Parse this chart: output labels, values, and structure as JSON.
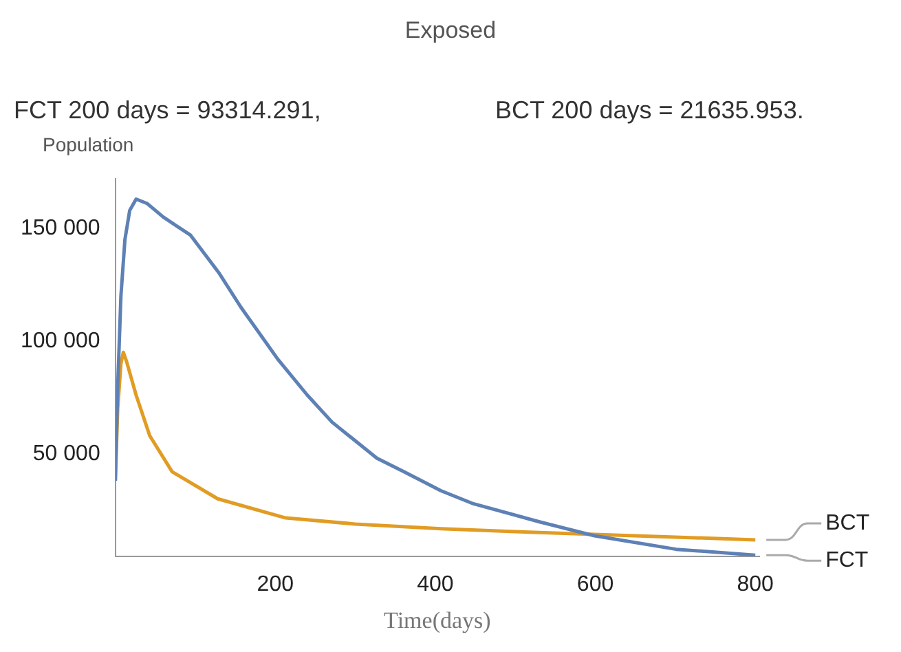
{
  "chart_data": {
    "type": "line",
    "title": "Exposed",
    "ylabel": "Population",
    "xlabel": "Time(days)",
    "annotations": [
      "FCT 200 days = 93314.291,",
      "BCT 200 days = 21635.953."
    ],
    "xlim": [
      0,
      805
    ],
    "xticks": [
      200,
      400,
      600,
      800
    ],
    "ylim": [
      4500,
      172000
    ],
    "yticks": [
      {
        "value": 50000,
        "label": "50 000"
      },
      {
        "value": 100000,
        "label": "100 000"
      },
      {
        "value": 150000,
        "label": "150 000"
      }
    ],
    "grid": false,
    "legend": false,
    "marker": "none",
    "line_style": "solid",
    "series": [
      {
        "name": "FCT",
        "color": "#5e81b5",
        "x": [
          0,
          3,
          7,
          12,
          18,
          26,
          40,
          60,
          94,
          130,
          157,
          203,
          240,
          271,
          327,
          361,
          407,
          446,
          531,
          599,
          701,
          800
        ],
        "values": [
          38000,
          80000,
          120000,
          145000,
          158000,
          163000,
          161000,
          155000,
          147000,
          130000,
          115000,
          92000,
          76000,
          64000,
          48000,
          42000,
          33600,
          28000,
          19700,
          13600,
          7600,
          5000
        ]
      },
      {
        "name": "BCT",
        "color": "#e19c24",
        "x": [
          0,
          3,
          7,
          10,
          14,
          26,
          43,
          71,
          128,
          213,
          300,
          407,
          500,
          599,
          700,
          800
        ],
        "values": [
          38000,
          70000,
          90000,
          95000,
          91000,
          76000,
          58000,
          42000,
          30000,
          21500,
          18800,
          16700,
          15400,
          14200,
          13000,
          11800
        ]
      }
    ]
  }
}
